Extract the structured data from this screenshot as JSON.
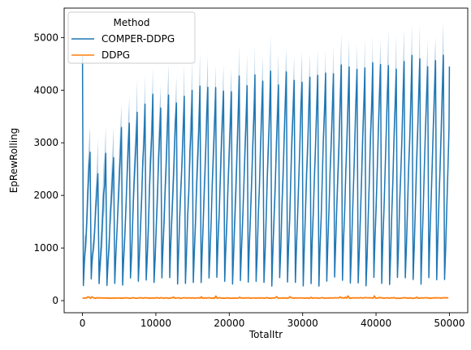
{
  "chart_data": {
    "type": "line",
    "xlabel": "TotalItr",
    "ylabel": "EpRewRolling",
    "xlim": [
      -2500,
      52500
    ],
    "ylim": [
      -230,
      5560
    ],
    "x_ticks": [
      0,
      10000,
      20000,
      30000,
      40000,
      50000
    ],
    "y_ticks": [
      0,
      1000,
      2000,
      3000,
      4000,
      5000
    ],
    "grid": false,
    "legend": {
      "title": "Method",
      "placement": "top-left",
      "entries": [
        "COMPER-DDPG",
        "DDPG"
      ]
    },
    "series": [
      {
        "name": "COMPER-DDPG",
        "color": "#1f77b4",
        "band_color": "#a6c8e3",
        "pattern": "periodic sawtooth oscillation",
        "cycle_length": 1070,
        "x_start": 0,
        "x_end": 50000,
        "start_value": 4650,
        "trough_min": 270,
        "trough_max": 450,
        "peak_values": [
          2900,
          2300,
          2700,
          2750,
          3300,
          3400,
          3600,
          3700,
          3800,
          3750,
          3900,
          3850,
          3950,
          3900,
          4000,
          4050,
          4000,
          4100,
          4050,
          4150,
          4100,
          4200,
          4150,
          4250,
          4200,
          4250,
          4300,
          4250,
          4300,
          4350,
          4300,
          4350,
          4400,
          4350,
          4400,
          4450,
          4400,
          4450,
          4500,
          4450,
          4500,
          4550,
          4500,
          4550,
          4600,
          4550,
          4600
        ],
        "band_peak_max": 5330,
        "end_value": 4450
      },
      {
        "name": "DDPG",
        "color": "#ff7f0e",
        "x_start": 0,
        "x_end": 50000,
        "mean_value": 50,
        "noise_max": 90
      }
    ]
  }
}
